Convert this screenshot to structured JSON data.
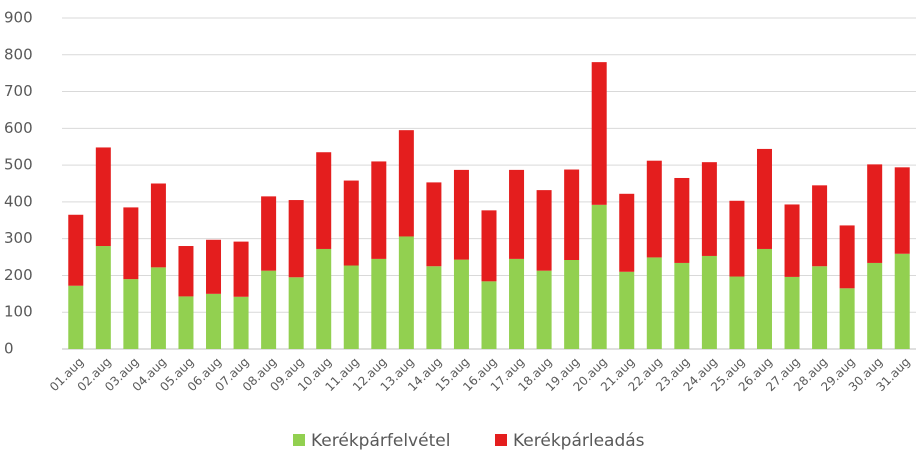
{
  "chart_data": {
    "type": "bar",
    "stacked": true,
    "categories": [
      "01.aug",
      "02.aug",
      "03.aug",
      "04.aug",
      "05.aug",
      "06.aug",
      "07.aug",
      "08.aug",
      "09.aug",
      "10.aug",
      "11.aug",
      "12.aug",
      "13.aug",
      "14.aug",
      "15.aug",
      "16.aug",
      "17.aug",
      "18.aug",
      "19.aug",
      "20.aug",
      "21.aug",
      "22.aug",
      "23.aug",
      "24.aug",
      "25.aug",
      "26.aug",
      "27.aug",
      "28.aug",
      "29.aug",
      "30.aug",
      "31.aug"
    ],
    "series": [
      {
        "name": "Kerékpárfelvétel",
        "color": "#92d050",
        "values": [
          172,
          280,
          190,
          222,
          143,
          150,
          142,
          213,
          195,
          272,
          227,
          245,
          306,
          225,
          243,
          184,
          245,
          213,
          242,
          392,
          210,
          249,
          234,
          253,
          197,
          272,
          196,
          225,
          165,
          234,
          259
        ]
      },
      {
        "name": "Kerékpárleadás",
        "color": "#e41e1e",
        "values": [
          193,
          268,
          195,
          228,
          137,
          147,
          150,
          202,
          210,
          263,
          231,
          265,
          289,
          228,
          244,
          193,
          242,
          219,
          246,
          388,
          212,
          263,
          231,
          255,
          206,
          272,
          197,
          220,
          171,
          268,
          235
        ]
      }
    ],
    "ylim": [
      0,
      900
    ],
    "yticks": [
      0,
      100,
      200,
      300,
      400,
      500,
      600,
      700,
      800,
      900
    ],
    "grid": true,
    "legend": "bottom"
  }
}
